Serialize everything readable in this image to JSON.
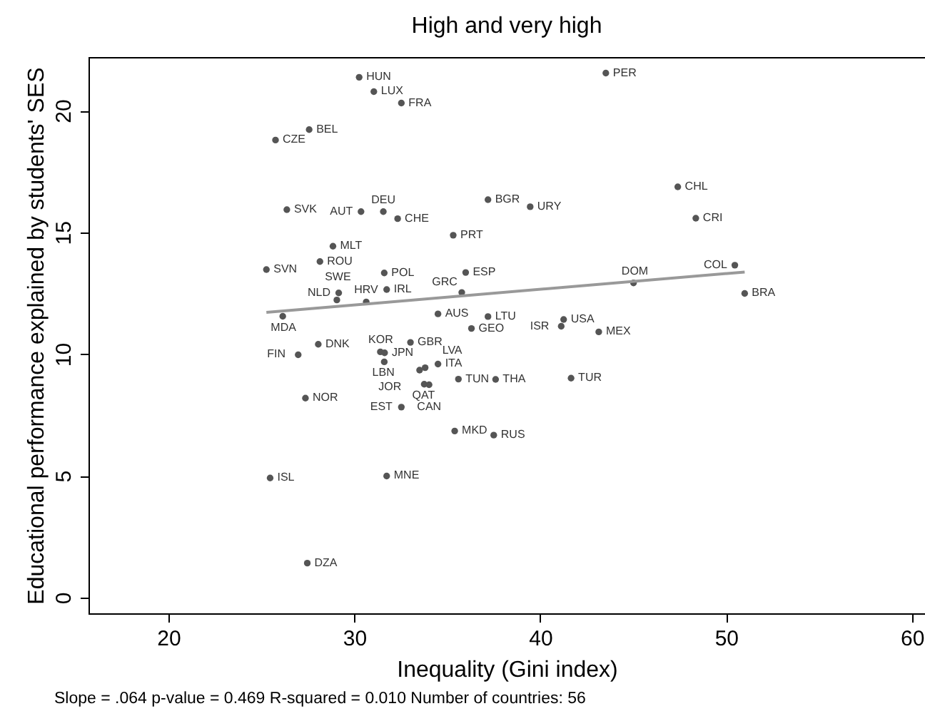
{
  "chart_data": {
    "type": "scatter",
    "title": "High and very high",
    "xlabel": "Inequality (Gini index)",
    "ylabel": "Educational performance explained by students' SES",
    "annotations": [
      "Slope = .064 p-value = 0.469 R-squared = 0.010 Number of countries: 56"
    ],
    "xlim": [
      15.7,
      60.7
    ],
    "xticks": [
      20,
      30,
      40,
      50,
      60
    ],
    "ylim": [
      -0.65,
      22.2
    ],
    "yticks": [
      0,
      5,
      10,
      15,
      20
    ],
    "series": [
      {
        "marker": "circle",
        "color": "#555555",
        "x": [
          30.26,
          31.05,
          32.53,
          27.57,
          25.76,
          26.37,
          30.36,
          31.56,
          32.33,
          37.19,
          39.46,
          35.32,
          28.85,
          28.15,
          25.27,
          31.61,
          35.99,
          31.74,
          35.78,
          29.16,
          29.06,
          30.64,
          26.15,
          34.5,
          37.19,
          43.53,
          47.4,
          48.37,
          50.47,
          45.02,
          51.0,
          41.26,
          41.13,
          43.15,
          41.66,
          36.3,
          33.02,
          28.06,
          26.98,
          31.4,
          31.63,
          31.61,
          34.5,
          33.51,
          33.81,
          33.76,
          34.02,
          35.6,
          37.6,
          27.37,
          32.53,
          35.4,
          37.5,
          25.47,
          31.74,
          27.47
        ],
        "values": [
          21.37,
          20.78,
          20.31,
          19.22,
          18.79,
          15.93,
          15.85,
          15.85,
          15.56,
          16.34,
          16.05,
          14.88,
          14.43,
          13.8,
          13.47,
          13.33,
          13.35,
          12.65,
          12.53,
          12.51,
          12.22,
          12.14,
          11.55,
          11.65,
          11.54,
          21.54,
          16.87,
          15.58,
          13.65,
          12.92,
          12.49,
          11.42,
          11.14,
          10.91,
          9.01,
          11.05,
          10.48,
          10.4,
          9.97,
          10.09,
          10.05,
          9.68,
          9.59,
          9.34,
          9.44,
          8.76,
          8.74,
          8.97,
          8.96,
          8.19,
          7.82,
          6.84,
          6.67,
          4.91,
          4.99,
          1.41
        ],
        "value_labels": [
          "HUN",
          "LUX",
          "FRA",
          "BEL",
          "CZE",
          "SVK",
          "AUT",
          "DEU",
          "CHE",
          "BGR",
          "URY",
          "PRT",
          "MLT",
          "ROU",
          "SVN",
          "POL",
          "ESP",
          "IRL",
          "GRC",
          "NLD",
          "SWE",
          "HRV",
          "MDA",
          "AUS",
          "LTU",
          "PER",
          "CHL",
          "CRI",
          "COL",
          "DOM",
          "BRA",
          "USA",
          "ISR",
          "MEX",
          "TUR",
          "GEO",
          "GBR",
          "DNK",
          "FIN",
          "KOR",
          "JPN",
          "LBN",
          "ITA",
          "JOR",
          "LVA",
          "QAT",
          "CAN",
          "TUN",
          "THA",
          "NOR",
          "EST",
          "MKD",
          "RUS",
          "ISL",
          "MNE",
          "DZA"
        ]
      },
      {
        "type": "line",
        "color": "#999999",
        "x": [
          25.27,
          51.0
        ],
        "values": [
          11.71,
          13.37
        ]
      }
    ]
  }
}
